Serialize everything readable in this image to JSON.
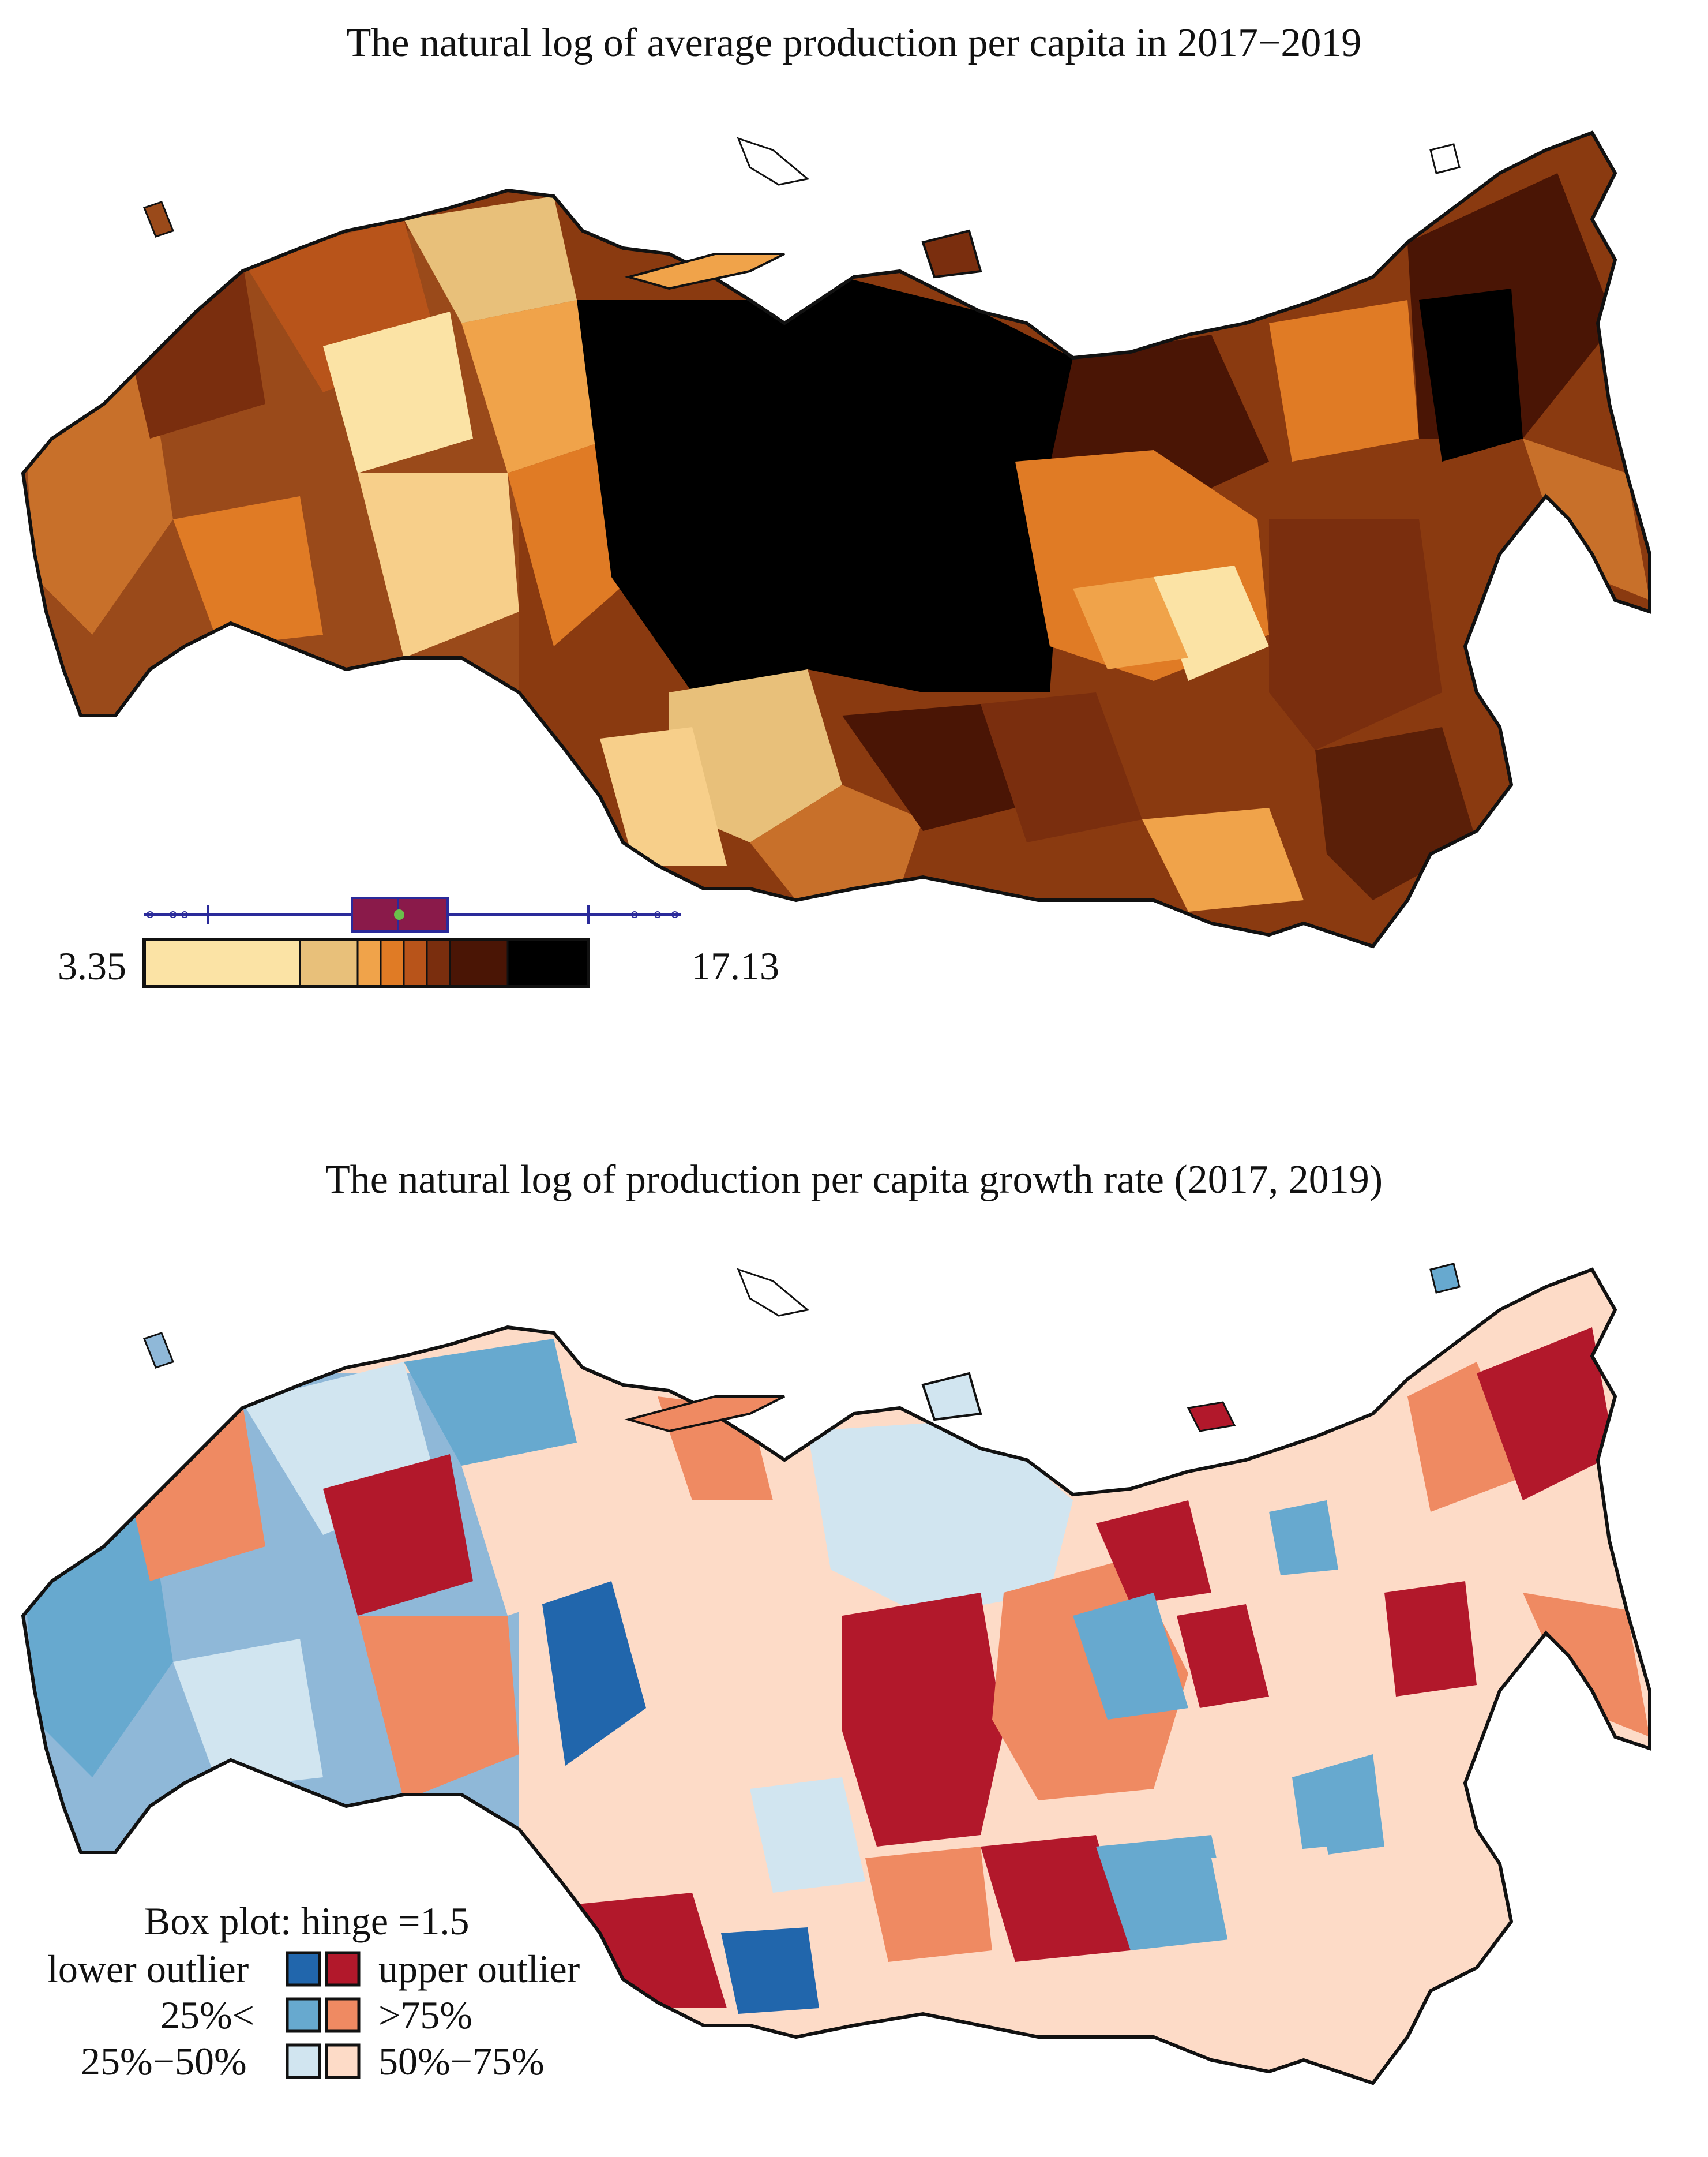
{
  "maps": [
    {
      "title": "The natural log of average production per capita in 2017−2019",
      "legend": {
        "min_label": "3.35",
        "max_label": "17.13",
        "colors": [
          "#fbe3a5",
          "#e8c07a",
          "#f0a34a",
          "#e07b25",
          "#b8541a",
          "#7a2e0e",
          "#4a1505",
          "#000000"
        ]
      }
    },
    {
      "title": "The natural log of production per capita growth rate (2017, 2019)",
      "legend": {
        "title": "Box plot: hinge =1.5",
        "entries": {
          "lower_outlier": "lower outlier",
          "upper_outlier": "upper outlier",
          "q1": "25%<",
          "q4": ">75%",
          "q2": "25%−50%",
          "q3": "50%−75%"
        },
        "colors": {
          "lower_outlier": "#2166ac",
          "upper_outlier": "#b2182b",
          "q1": "#67a9cf",
          "q4": "#ef8a62",
          "q2": "#d1e5f0",
          "q3": "#fddbc7"
        }
      }
    }
  ]
}
